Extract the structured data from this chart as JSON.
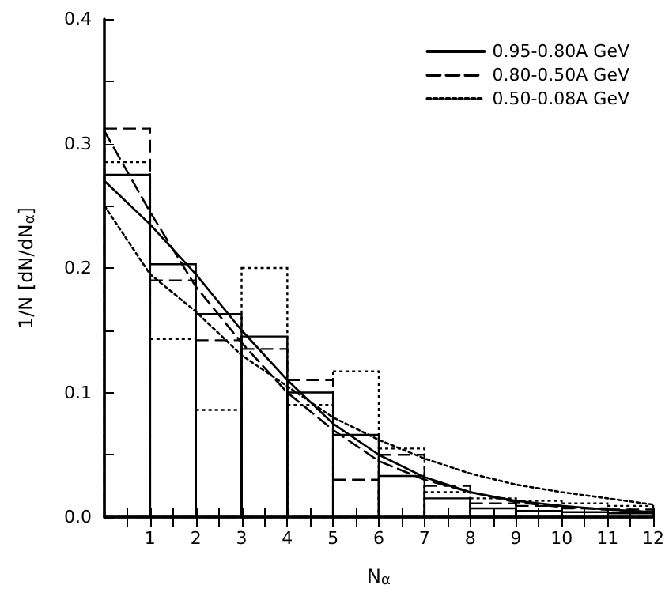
{
  "chart_data": {
    "type": "histogram",
    "xlabel": "N$_{α}$",
    "ylabel": "1/N [dN/dN$_{α}$]",
    "bins": [
      0,
      1,
      2,
      3,
      4,
      5,
      6,
      7,
      8,
      9,
      10,
      11,
      12
    ],
    "xlim": [
      0,
      12
    ],
    "ylim": [
      0,
      0.4
    ],
    "xticks": [
      {
        "value": 0.5,
        "label": null
      },
      1,
      {
        "value": 1.5,
        "label": null
      },
      2,
      {
        "value": 2.5,
        "label": null
      },
      3,
      {
        "value": 3.5,
        "label": null
      },
      4,
      {
        "value": 4.5,
        "label": null
      },
      5,
      {
        "value": 5.5,
        "label": null
      },
      6,
      {
        "value": 6.5,
        "label": null
      },
      7,
      {
        "value": 7.5,
        "label": null
      },
      8,
      {
        "value": 8.5,
        "label": null
      },
      9,
      {
        "value": 9.5,
        "label": null
      },
      10,
      {
        "value": 10.5,
        "label": null
      },
      11,
      {
        "value": 11.5,
        "label": null
      },
      12
    ],
    "yticks": [
      {
        "value": 0,
        "label": "0.0"
      },
      {
        "value": 0.05,
        "label": null
      },
      {
        "value": 0.1,
        "label": "0.1"
      },
      {
        "value": 0.15,
        "label": null
      },
      {
        "value": 0.2,
        "label": "0.2"
      },
      {
        "value": 0.25,
        "label": null
      },
      {
        "value": 0.3,
        "label": "0.3"
      },
      {
        "value": 0.35,
        "label": null
      },
      {
        "value": 0.4,
        "label": "0.4"
      }
    ],
    "legend": "top right",
    "grid": false,
    "series": [
      {
        "color": "#000000",
        "line_style": "solid",
        "values": [
          0.275,
          0.203,
          0.163,
          0.145,
          0.1,
          0.066,
          0.033,
          0.015,
          0.007,
          0.005,
          0.004,
          0.003
        ]
      },
      {
        "color": "#000000",
        "line_style": "dashed",
        "values": [
          0.312,
          0.19,
          0.142,
          0.135,
          0.11,
          0.03,
          0.05,
          0.025,
          0.011,
          0.009,
          0.007,
          0.006
        ]
      },
      {
        "color": "#000000",
        "line_style": "dotted",
        "values": [
          0.285,
          0.143,
          0.086,
          0.2,
          0.09,
          0.117,
          0.055,
          0.02,
          0.015,
          0.013,
          0.011,
          0.009
        ]
      },
      {
        "type": "line",
        "name": "0.95-0.80A GeV",
        "color": "#000000",
        "line_style": "solid",
        "marker": "none",
        "x": [
          0,
          1,
          2,
          3,
          4,
          5,
          6,
          7,
          8,
          9,
          10,
          11,
          12
        ],
        "values": [
          0.27,
          0.235,
          0.195,
          0.15,
          0.11,
          0.075,
          0.05,
          0.032,
          0.02,
          0.013,
          0.009,
          0.006,
          0.004
        ]
      },
      {
        "type": "line",
        "name": "0.80-0.50A GeV",
        "color": "#000000",
        "line_style": "dashed",
        "marker": "none",
        "x": [
          0,
          1,
          2,
          3,
          4,
          5,
          6,
          7,
          8,
          9,
          10,
          11,
          12
        ],
        "values": [
          0.31,
          0.245,
          0.185,
          0.14,
          0.1,
          0.07,
          0.045,
          0.03,
          0.02,
          0.012,
          0.008,
          0.006,
          0.004
        ]
      },
      {
        "type": "line",
        "name": "0.50-0.08A GeV",
        "color": "#000000",
        "line_style": "dotted",
        "marker": "none",
        "x": [
          0,
          1,
          2,
          3,
          4,
          5,
          6,
          7,
          8,
          9,
          10,
          11,
          12
        ],
        "values": [
          0.25,
          0.195,
          0.165,
          0.13,
          0.105,
          0.08,
          0.062,
          0.047,
          0.035,
          0.026,
          0.02,
          0.015,
          0.01
        ]
      }
    ]
  }
}
